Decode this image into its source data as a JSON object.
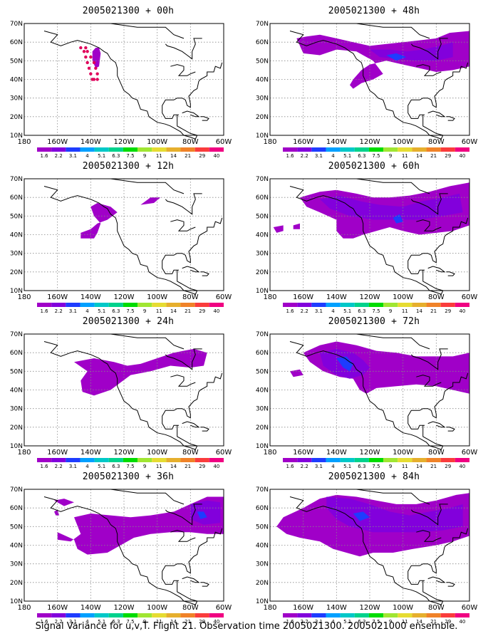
{
  "panels": [
    {
      "title": "2005021300 + 00h"
    },
    {
      "title": "2005021300 + 48h"
    },
    {
      "title": "2005021300 + 12h"
    },
    {
      "title": "2005021300 + 60h"
    },
    {
      "title": "2005021300 + 24h"
    },
    {
      "title": "2005021300 + 72h"
    },
    {
      "title": "2005021300 + 36h"
    },
    {
      "title": "2005021300 + 84h"
    }
  ],
  "lat_labels": [
    "70N",
    "60N",
    "50N",
    "40N",
    "30N",
    "20N",
    "10N"
  ],
  "lon_labels": [
    "180",
    "160W",
    "140W",
    "120W",
    "100W",
    "80W",
    "60W"
  ],
  "colorbar": {
    "labels": [
      "1.6",
      "2.2",
      "3.1",
      "4",
      "5.1",
      "6.3",
      "7.5",
      "9",
      "11",
      "14",
      "21",
      "29",
      "40"
    ],
    "colors": [
      "#a000c8",
      "#8200dc",
      "#1e3cff",
      "#00a0ff",
      "#00c8c8",
      "#00d28c",
      "#00dc00",
      "#a0e632",
      "#e6dc32",
      "#e6af2d",
      "#f08228",
      "#fa3c3c",
      "#f00082"
    ]
  },
  "footer": "Signal Variance for u,v,T. Flight 21. Observation time 2005021300. 2005021000 ensemble."
}
